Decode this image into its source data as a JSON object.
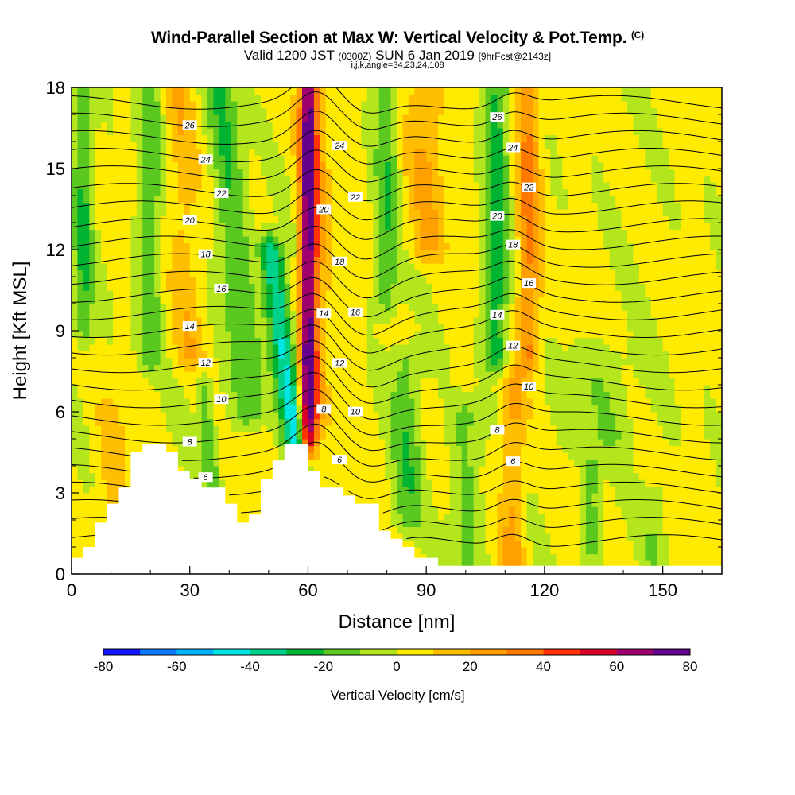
{
  "header": {
    "title_main": "Wind-Parallel Section at Max W: Vertical Velocity & Pot.Temp.",
    "title_tag": "(C)",
    "subtitle_a": "Valid 1200 JST",
    "subtitle_b": "(0300Z)",
    "subtitle_c": "SUN 6 Jan 2019",
    "subtitle_d": "[9hrFcst@2143z]",
    "params": "i,j,k,angle=34,23,24,108"
  },
  "chart_data": {
    "type": "heatmap",
    "xlabel": "Distance [nm]",
    "ylabel": "Height [Kft MSL]",
    "xlim": [
      0,
      165
    ],
    "ylim": [
      0,
      18
    ],
    "x_ticks": [
      "0",
      "30",
      "60",
      "90",
      "120",
      "150"
    ],
    "x_tick_values": [
      0,
      30,
      60,
      90,
      120,
      150
    ],
    "y_ticks": [
      "0",
      "3",
      "6",
      "9",
      "12",
      "15",
      "18"
    ],
    "y_tick_values": [
      0,
      3,
      6,
      9,
      12,
      15,
      18
    ],
    "colorbar": {
      "label": "Vertical Velocity [cm/s]",
      "tick_labels": [
        "-80",
        "-60",
        "-40",
        "-20",
        "0",
        "20",
        "40",
        "60",
        "80"
      ],
      "tick_values": [
        -80,
        -60,
        -40,
        -20,
        0,
        20,
        40,
        60,
        80
      ],
      "bins": [
        -80,
        -70,
        -60,
        -50,
        -40,
        -30,
        -20,
        -10,
        0,
        10,
        20,
        30,
        40,
        50,
        60,
        70,
        80
      ],
      "colors": [
        "#1414ff",
        "#0a78ff",
        "#00b4ff",
        "#00e6e6",
        "#00d28c",
        "#00b432",
        "#5ac81e",
        "#b4e61e",
        "#ffeb00",
        "#ffbe00",
        "#ffa000",
        "#ff7800",
        "#ff3200",
        "#dc0028",
        "#a0006e",
        "#64008c"
      ]
    },
    "w_field": {
      "background": 2,
      "plumes": [
        {
          "x0": 60,
          "slope": 0,
          "h0": 4.9,
          "h1": 18,
          "w": 2.2,
          "amp": 70
        },
        {
          "x0": 57,
          "slope": 0.15,
          "h0": 4.8,
          "h1": 12,
          "w": 3.0,
          "amp": -45
        },
        {
          "x0": 63,
          "slope": 0,
          "h0": 6,
          "h1": 18,
          "w": 3,
          "amp": 15
        },
        {
          "x0": 45,
          "slope": 0.1,
          "h0": 6,
          "h1": 18,
          "w": 4,
          "amp": -22
        },
        {
          "x0": 36,
          "slope": 0.1,
          "h0": 3,
          "h1": 7,
          "w": 2,
          "amp": -20
        },
        {
          "x0": 30,
          "slope": 0.05,
          "h0": 8,
          "h1": 18,
          "w": 4,
          "amp": 14
        },
        {
          "x0": 20,
          "slope": 0,
          "h0": 8,
          "h1": 18,
          "w": 3,
          "amp": -18
        },
        {
          "x0": 3,
          "slope": 0,
          "h0": 9,
          "h1": 18,
          "w": 2.5,
          "amp": -22
        },
        {
          "x0": 80,
          "slope": 0,
          "h0": 10,
          "h1": 18,
          "w": 3,
          "amp": -20
        },
        {
          "x0": 90,
          "slope": 0,
          "h0": 12,
          "h1": 18,
          "w": 5,
          "amp": 18
        },
        {
          "x0": 108,
          "slope": 0,
          "h0": 8,
          "h1": 18,
          "w": 3,
          "amp": -28
        },
        {
          "x0": 116,
          "slope": 0,
          "h0": 8,
          "h1": 18,
          "w": 3,
          "amp": 30
        },
        {
          "x0": 85,
          "slope": 0,
          "h0": 2,
          "h1": 8,
          "w": 4,
          "amp": -18
        },
        {
          "x0": 100,
          "slope": 0,
          "h0": 0,
          "h1": 6,
          "w": 4,
          "amp": -14
        },
        {
          "x0": 112,
          "slope": 0,
          "h0": 0,
          "h1": 7,
          "w": 3,
          "amp": 20
        },
        {
          "x0": 132,
          "slope": 0,
          "h0": 1,
          "h1": 4,
          "w": 2.5,
          "amp": -16
        },
        {
          "x0": 148,
          "slope": 0,
          "h0": 0.5,
          "h1": 3,
          "w": 3,
          "amp": -10
        },
        {
          "x0": 10,
          "slope": 0,
          "h0": 2,
          "h1": 6,
          "w": 4,
          "amp": 12
        },
        {
          "x0": 135,
          "slope": 0,
          "h0": 5,
          "h1": 8,
          "w": 10,
          "amp": -10
        }
      ]
    },
    "theta_contours": {
      "levels": [
        2,
        3,
        4,
        5,
        6,
        7,
        8,
        9,
        10,
        11,
        12,
        13,
        14,
        15,
        16,
        17,
        18,
        19,
        20,
        21,
        22,
        23,
        24,
        25,
        26,
        27
      ],
      "labeled_levels": [
        6,
        8,
        10,
        12,
        14,
        16,
        18,
        20,
        22,
        24,
        26
      ]
    },
    "terrain": {
      "x": [
        0,
        3,
        3,
        6,
        6,
        9,
        9,
        12,
        12,
        15,
        15,
        18,
        18,
        21,
        21,
        24,
        24,
        27,
        27,
        30,
        30,
        33,
        33,
        36,
        36,
        39,
        39,
        42,
        42,
        45,
        45,
        48,
        48,
        51,
        51,
        54,
        54,
        57,
        57,
        60,
        60,
        63,
        63,
        66,
        66,
        69,
        69,
        72,
        72,
        75,
        75,
        78,
        78,
        81,
        81,
        84,
        84,
        87,
        87,
        90,
        90,
        93,
        93,
        96,
        96,
        165
      ],
      "h": [
        0.6,
        0.6,
        1.0,
        1.0,
        1.9,
        1.9,
        2.6,
        2.6,
        3.2,
        3.2,
        4.5,
        4.5,
        4.8,
        4.8,
        4.8,
        4.8,
        4.5,
        4.5,
        3.8,
        3.8,
        3.5,
        3.5,
        3.2,
        3.2,
        3.2,
        3.2,
        2.6,
        2.6,
        1.9,
        1.9,
        2.2,
        2.2,
        3.5,
        3.5,
        4.2,
        4.2,
        4.8,
        4.8,
        4.8,
        4.8,
        3.8,
        3.8,
        3.2,
        3.2,
        3.2,
        3.2,
        2.9,
        2.9,
        2.6,
        2.6,
        2.6,
        2.6,
        1.6,
        1.6,
        1.3,
        1.3,
        1.0,
        1.0,
        0.6,
        0.6,
        0.6,
        0.6,
        0.3,
        0.3,
        0.3,
        0.3
      ]
    }
  }
}
